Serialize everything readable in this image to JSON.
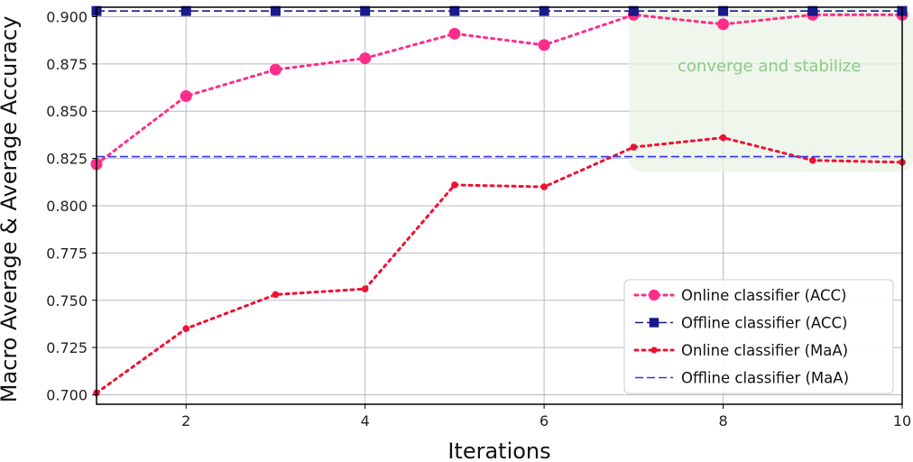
{
  "chart_data": {
    "type": "line",
    "xlabel": "Iterations",
    "ylabel": "Macro Average & Average Accuracy",
    "xlim": [
      1,
      10
    ],
    "ylim": [
      0.695,
      0.905
    ],
    "xticks": [
      2,
      4,
      6,
      8,
      10
    ],
    "xtick_labels": [
      "2",
      "4",
      "6",
      "8",
      "10"
    ],
    "yticks": [
      0.7,
      0.725,
      0.75,
      0.775,
      0.8,
      0.825,
      0.85,
      0.875,
      0.9
    ],
    "ytick_labels": [
      "0.700",
      "0.725",
      "0.750",
      "0.775",
      "0.800",
      "0.825",
      "0.850",
      "0.875",
      "0.900"
    ],
    "grid": true,
    "legend_position": "bottom-right",
    "series": [
      {
        "name": "Online classifier (ACC)",
        "color": "#ff2d8a",
        "line": "dotted",
        "marker": "circle",
        "x": [
          1,
          2,
          3,
          4,
          5,
          6,
          7,
          8,
          9,
          10
        ],
        "y": [
          0.822,
          0.858,
          0.872,
          0.878,
          0.891,
          0.885,
          0.901,
          0.896,
          0.901,
          0.901
        ]
      },
      {
        "name": "Offline classifier (ACC)",
        "color": "#1a1a8c",
        "line": "dashed",
        "marker": "square",
        "x": [
          1,
          2,
          3,
          4,
          5,
          6,
          7,
          8,
          9,
          10
        ],
        "y": [
          0.903,
          0.903,
          0.903,
          0.903,
          0.903,
          0.903,
          0.903,
          0.903,
          0.903,
          0.903
        ]
      },
      {
        "name": "Online classifier (MaA)",
        "color": "#ee1133",
        "line": "dotted",
        "marker": "small-circle",
        "x": [
          1,
          2,
          3,
          4,
          5,
          6,
          7,
          8,
          9,
          10
        ],
        "y": [
          0.701,
          0.735,
          0.753,
          0.756,
          0.811,
          0.81,
          0.831,
          0.836,
          0.824,
          0.823
        ]
      },
      {
        "name": "Offline classifier (MaA)",
        "color": "#3333ee",
        "line": "dashed",
        "marker": "none",
        "x": [
          1,
          10
        ],
        "y": [
          0.826,
          0.826
        ]
      }
    ],
    "annotation": {
      "text": "converge and stabilize",
      "color": "#8dc98a",
      "fill": "#e9f3e4",
      "x_range": [
        6.95,
        10
      ],
      "y_range": [
        0.818,
        0.905
      ]
    }
  }
}
